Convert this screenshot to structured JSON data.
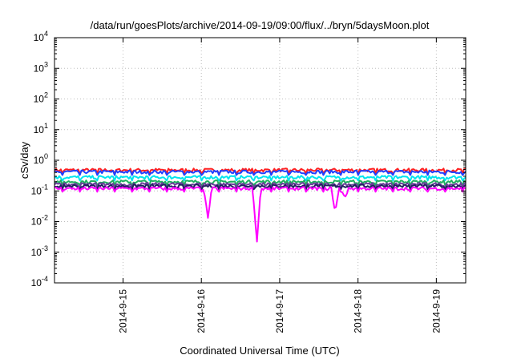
{
  "chart_data": {
    "type": "line",
    "title": "/data/run/goesPlots/archive/2014-09-19/09:00/flux/../bryn/5daysMoon.plot",
    "xlabel": "Coordinated Universal Time (UTC)",
    "ylabel": "cSv/day",
    "yscale": "log",
    "ylim": [
      0.0001,
      10000
    ],
    "xlim": [
      "2014-09-14 03:00",
      "2014-09-19 09:00"
    ],
    "grid": true,
    "xticks": [
      "2014-9-15",
      "2014-9-16",
      "2014-9-17",
      "2014-9-18",
      "2014-9-19"
    ],
    "yticks": [
      {
        "base": "10",
        "exp": "-4"
      },
      {
        "base": "10",
        "exp": "-3"
      },
      {
        "base": "10",
        "exp": "-2"
      },
      {
        "base": "10",
        "exp": "-1"
      },
      {
        "base": "10",
        "exp": "0"
      },
      {
        "base": "10",
        "exp": "1"
      },
      {
        "base": "10",
        "exp": "2"
      },
      {
        "base": "10",
        "exp": "3"
      },
      {
        "base": "10",
        "exp": "4"
      }
    ],
    "series": [
      {
        "color": "#ff2020",
        "base": 0.48,
        "dips": []
      },
      {
        "color": "#2040ff",
        "base": 0.42,
        "dips": []
      },
      {
        "color": "#00e5ee",
        "base": 0.28,
        "dips": []
      },
      {
        "color": "#20b060",
        "base": 0.2,
        "dips": []
      },
      {
        "color": "#6a3d9a",
        "base": 0.165,
        "dips": []
      },
      {
        "color": "#202060",
        "base": 0.145,
        "dips": []
      },
      {
        "color": "#ff00ff",
        "base": 0.12,
        "dips": [
          {
            "t": "2014-09-16 02:00",
            "v": 0.013
          },
          {
            "t": "2014-09-16 17:00",
            "v": 0.002
          },
          {
            "t": "2014-09-17 17:00",
            "v": 0.02
          },
          {
            "t": "2014-09-17 20:00",
            "v": 0.06
          }
        ]
      }
    ]
  }
}
